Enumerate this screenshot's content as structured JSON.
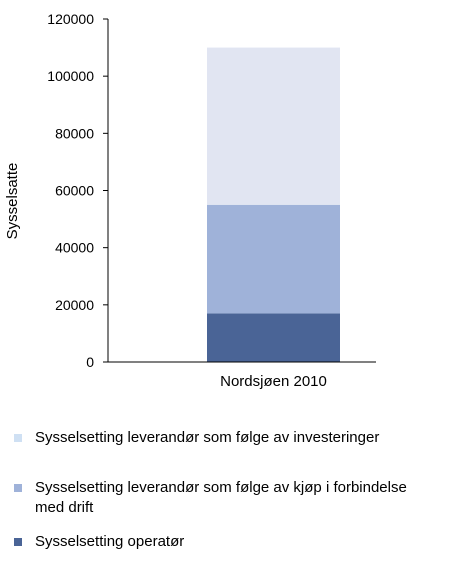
{
  "chart_data": {
    "type": "bar",
    "stacked": true,
    "categories": [
      "Nordsjøen 2010"
    ],
    "ylabel": "Sysselsatte",
    "xlabel": "",
    "ylim": [
      0,
      120000
    ],
    "yticks": [
      0,
      20000,
      40000,
      60000,
      80000,
      100000,
      120000
    ],
    "grid": false,
    "legend_position": "bottom",
    "series": [
      {
        "name": "Sysselsetting operatør",
        "values": [
          17000
        ],
        "color": "#4a6496"
      },
      {
        "name": "Sysselsetting leverandør som følge av kjøp i forbindelse med drift",
        "values": [
          38000
        ],
        "color": "#9fb2d9"
      },
      {
        "name": "Sysselsetting leverandør som følge av investeringer",
        "values": [
          55000
        ],
        "color": "#e1e5f2"
      }
    ]
  },
  "legend": [
    {
      "label": "Sysselsetting leverandør som følge av investeringer",
      "color": "#cfe0f3"
    },
    {
      "label": "Sysselsetting leverandør som følge av kjøp i forbindelse med drift",
      "color": "#9fb2d9"
    },
    {
      "label": "Sysselsetting operatør",
      "color": "#4a6496"
    }
  ]
}
